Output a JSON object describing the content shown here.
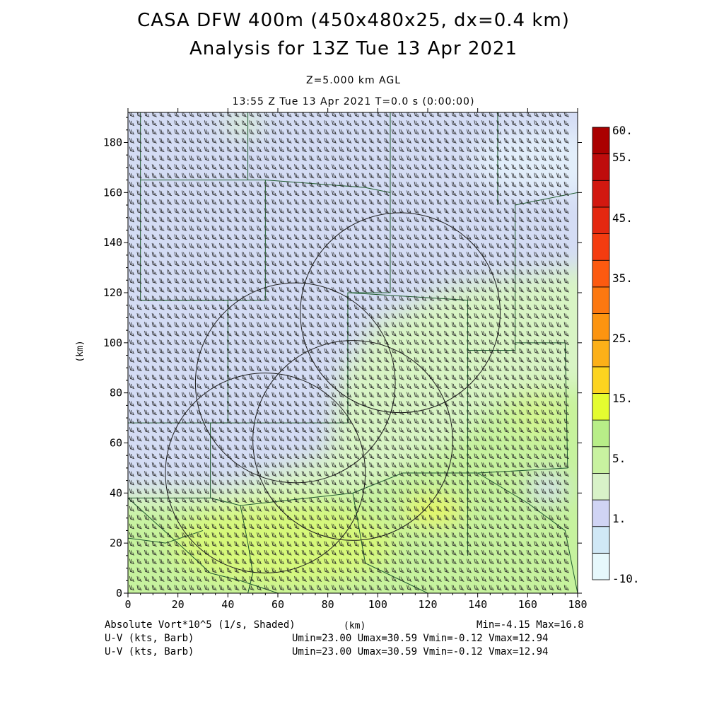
{
  "titles": {
    "line1": "CASA DFW 400m (450x480x25, dx=0.4 km)",
    "line2": "Analysis for 13Z Tue 13 Apr 2021",
    "level": "Z=5.000 km AGL",
    "time": "13:55 Z Tue 13 Apr 2021    T=0.0 s (0:00:00)"
  },
  "footer": {
    "field_label": "Absolute Vort*10^5 (1/s, Shaded)",
    "xunit_label": "(km)",
    "minmax": "Min=-4.15 Max=16.8",
    "barb1_label": "U-V (kts, Barb)",
    "barb1_stats": "Umin=23.00 Umax=30.59 Vmin=-0.12 Vmax=12.94",
    "barb2_label": "U-V (kts, Barb)",
    "barb2_stats": "Umin=23.00 Umax=30.59 Vmin=-0.12 Vmax=12.94"
  },
  "map": {
    "x_range_km": [
      0,
      180
    ],
    "y_range_km": [
      0,
      192
    ],
    "x_ticks": [
      "0",
      "20",
      "40",
      "60",
      "80",
      "100",
      "120",
      "140",
      "160",
      "180"
    ],
    "y_ticks": [
      "0",
      "20",
      "40",
      "60",
      "80",
      "100",
      "120",
      "140",
      "160",
      "180"
    ],
    "y_axis_label": "(km)",
    "radar_range_rings_km": [
      {
        "cx": 109,
        "cy": 112,
        "r": 40
      },
      {
        "cx": 67,
        "cy": 84,
        "r": 40
      },
      {
        "cx": 90,
        "cy": 61,
        "r": 40
      },
      {
        "cx": 55,
        "cy": 48,
        "r": 40
      }
    ]
  },
  "colorbar": {
    "tick_labels": [
      "60.",
      "55.",
      "45.",
      "35.",
      "25.",
      "15.",
      "5.",
      "1.",
      "-10."
    ],
    "colors": [
      "#e6f8fc",
      "#d0e8f6",
      "#d0d4f4",
      "#d8f2c8",
      "#c8f2a0",
      "#b8ee88",
      "#e4fc30",
      "#fcd420",
      "#fcb018",
      "#fc9410",
      "#fc7810",
      "#fc5a10",
      "#f43c10",
      "#e42810",
      "#d21810",
      "#be0c0c",
      "#aa0000"
    ]
  },
  "colors": {
    "background": "#ffffff",
    "county_lines": "#1e5a2e",
    "range_rings": "#1a1a1a",
    "barbs": "#222222"
  }
}
